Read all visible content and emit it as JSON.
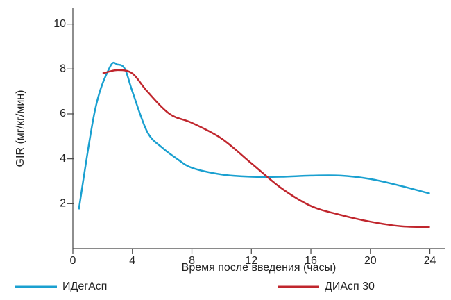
{
  "chart_data": {
    "type": "line",
    "x_label": "Время после введения (часы)",
    "y_label": "GIR (мг/кг/мин)",
    "xlim": [
      0,
      25
    ],
    "ylim": [
      0,
      10.7
    ],
    "xticks": [
      0,
      4,
      8,
      12,
      16,
      20,
      24
    ],
    "yticks": [
      2,
      4,
      6,
      8,
      10
    ],
    "series": [
      {
        "name": "ИДегАсп",
        "color": "#1aa0d0",
        "x": [
          0.4,
          1.5,
          2.5,
          3,
          3.5,
          4,
          5,
          6,
          7,
          8,
          10,
          12,
          14,
          16,
          18,
          20,
          22,
          24
        ],
        "values": [
          1.75,
          6.2,
          8.1,
          8.2,
          8.0,
          7.0,
          5.2,
          4.5,
          4.0,
          3.6,
          3.3,
          3.2,
          3.2,
          3.25,
          3.25,
          3.1,
          2.8,
          2.45
        ]
      },
      {
        "name": "ДИАсп 30",
        "color": "#c0262d",
        "x": [
          2,
          3,
          4,
          5,
          6.5,
          8,
          10,
          12,
          14,
          16,
          18,
          20,
          22,
          24
        ],
        "values": [
          7.8,
          7.95,
          7.8,
          7.0,
          6.0,
          5.6,
          4.9,
          3.8,
          2.7,
          1.9,
          1.5,
          1.2,
          1.0,
          0.95
        ]
      }
    ]
  }
}
